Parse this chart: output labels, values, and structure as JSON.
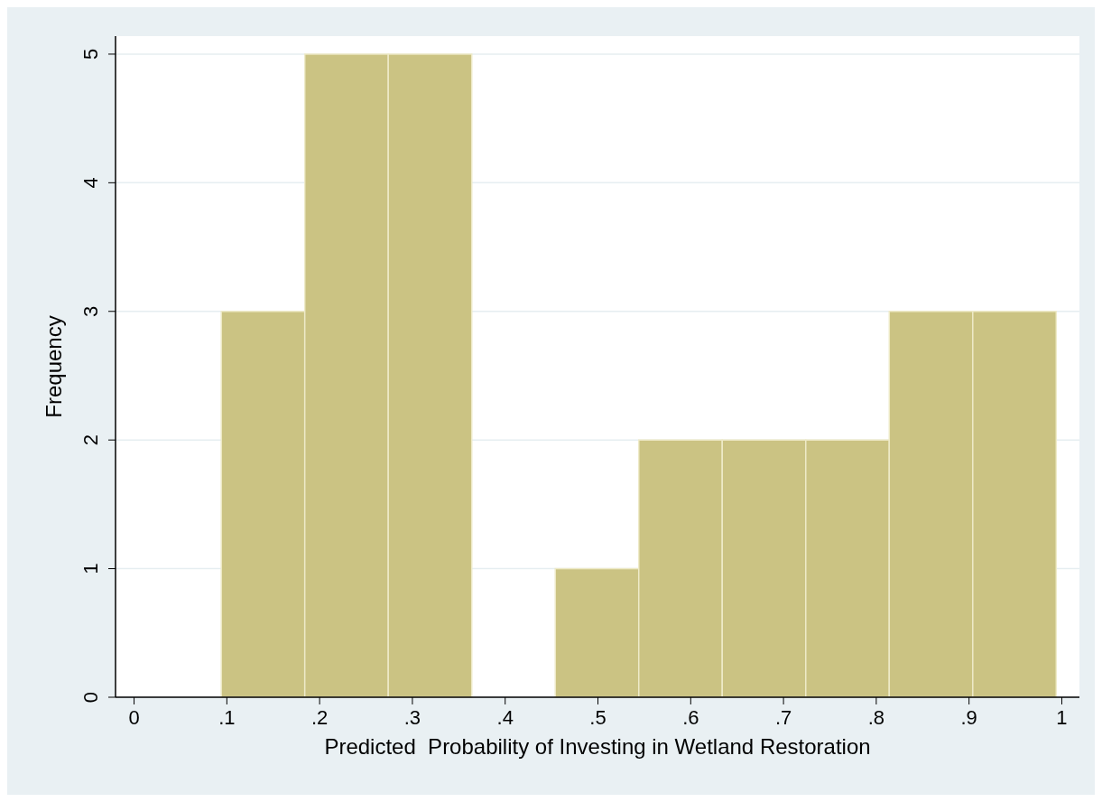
{
  "chart_data": {
    "type": "histogram",
    "xlabel": "Predicted  Probability of Investing in Wetland Restoration",
    "ylabel": "Frequency",
    "bins": [
      0.094,
      0.184,
      0.274,
      0.364,
      0.454,
      0.544,
      0.634,
      0.724,
      0.814,
      0.904,
      0.994
    ],
    "values": [
      3,
      5,
      5,
      0,
      1,
      2,
      2,
      2,
      3,
      3
    ],
    "color": "#cbc383",
    "xlim": [
      -0.02,
      1.019
    ],
    "ylim": [
      0,
      5.14
    ],
    "xticks": [
      0,
      {
        "value": 0.1,
        "label": ".1"
      },
      {
        "value": 0.2,
        "label": ".2"
      },
      {
        "value": 0.3,
        "label": ".3"
      },
      {
        "value": 0.4,
        "label": ".4"
      },
      {
        "value": 0.5,
        "label": ".5"
      },
      {
        "value": 0.6,
        "label": ".6"
      },
      {
        "value": 0.7,
        "label": ".7"
      },
      {
        "value": 0.8,
        "label": ".8"
      },
      {
        "value": 0.9,
        "label": ".9"
      },
      1
    ],
    "yticks": [
      0,
      1,
      2,
      3,
      4,
      5
    ],
    "grid": "y"
  }
}
